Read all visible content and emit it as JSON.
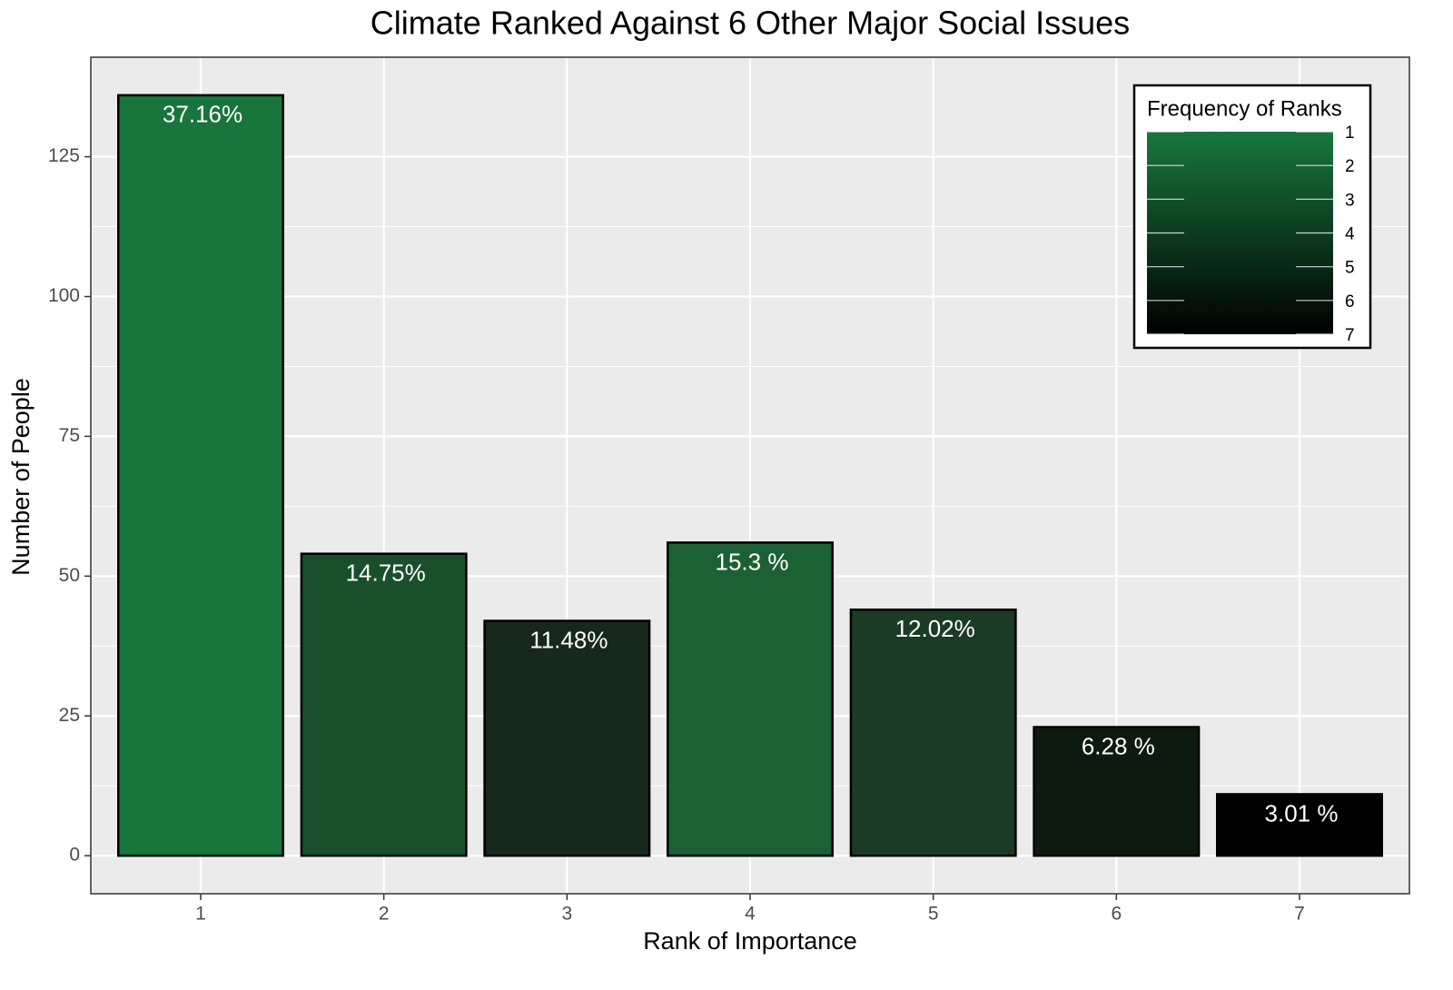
{
  "chart_data": {
    "type": "bar",
    "title": "Climate Ranked Against 6 Other Major Social Issues",
    "x_label": "Rank of Importance",
    "y_label": "Number of People",
    "categories": [
      "1",
      "2",
      "3",
      "4",
      "5",
      "6",
      "7"
    ],
    "values": [
      136,
      54,
      42,
      56,
      44,
      23,
      11
    ],
    "bar_labels": [
      "37.16%",
      "14.75%",
      "11.48%",
      "15.3 %",
      "12.02%",
      "6.28 %",
      "3.01 %"
    ],
    "colors": [
      "#18753c",
      "#1a4f2c",
      "#16291c",
      "#1b6134",
      "#1c3b24",
      "#0d1a10",
      "#000000"
    ],
    "ylim": [
      -6.8,
      142.8
    ],
    "yticks": [
      0,
      25,
      50,
      75,
      100,
      125
    ],
    "grid": true,
    "legend": {
      "title": "Frequency of Ranks",
      "position": "top-right",
      "ticks": [
        1,
        2,
        3,
        4,
        5,
        6,
        7
      ],
      "colors": [
        "#18773e",
        "#000000"
      ]
    }
  }
}
